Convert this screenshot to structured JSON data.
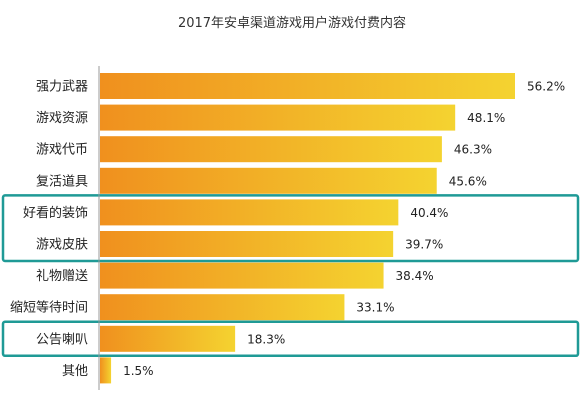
{
  "chart_data": {
    "type": "bar",
    "orientation": "horizontal",
    "title": "2017年安卓渠道游戏用户游戏付费内容",
    "categories": [
      "强力武器",
      "游戏资源",
      "游戏代币",
      "复活道具",
      "好看的装饰",
      "游戏皮肤",
      "礼物赠送",
      "缩短等待时间",
      "公告喇叭",
      "其他"
    ],
    "values": [
      56.2,
      48.1,
      46.3,
      45.6,
      40.4,
      39.7,
      38.4,
      33.1,
      18.3,
      1.5
    ],
    "value_labels": [
      "56.2%",
      "48.1%",
      "46.3%",
      "45.6%",
      "40.4%",
      "39.7%",
      "38.4%",
      "33.1%",
      "18.3%",
      "1.5%"
    ],
    "xlim": [
      0,
      56.2
    ],
    "grid": false,
    "highlighted_groups": [
      [
        "好看的装饰",
        "游戏皮肤"
      ],
      [
        "公告喇叭"
      ]
    ]
  },
  "colors": {
    "bar_gradient_start": "#f0901e",
    "bar_gradient_end": "#f4d330",
    "highlight_box": "#1f9a96",
    "axis": "#999999",
    "text": "#222222"
  }
}
